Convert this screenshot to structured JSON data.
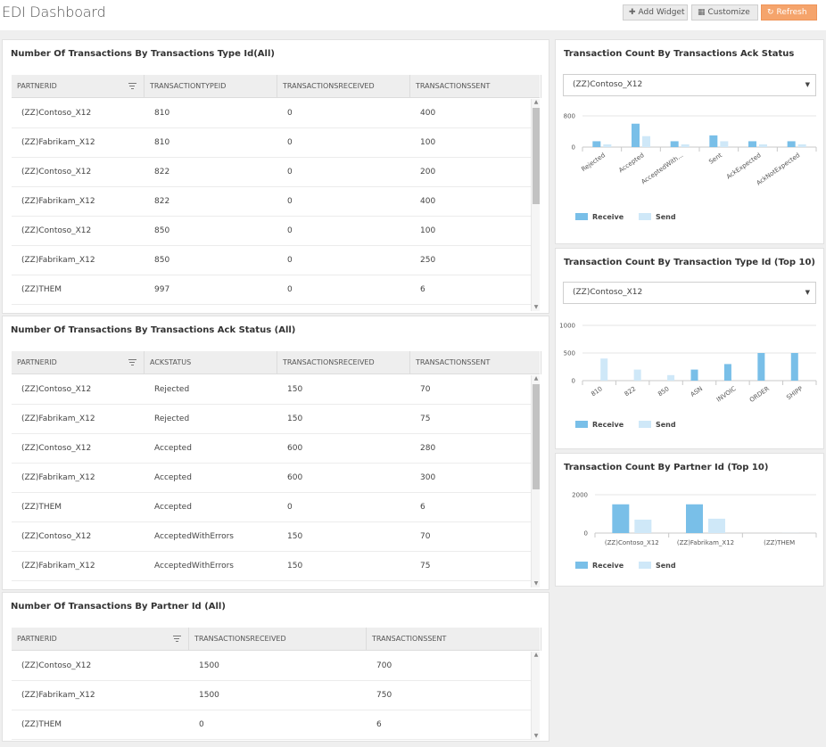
{
  "header": {
    "title": "EDI Dashboard",
    "add_widget": "Add Widget",
    "customize": "Customize",
    "refresh": "Refresh"
  },
  "colors": {
    "receive": "#79bfe8",
    "send": "#cfe8f8",
    "accent": "#f5a46c"
  },
  "grid_type": {
    "title": "Number Of Transactions By Transactions Type Id(All)",
    "columns": [
      "PARTNERID",
      "TRANSACTIONTYPEID",
      "TRANSACTIONSRECEIVED",
      "TRANSACTIONSSENT"
    ],
    "rows": [
      [
        "(ZZ)Contoso_X12",
        "810",
        "0",
        "400"
      ],
      [
        "(ZZ)Fabrikam_X12",
        "810",
        "0",
        "100"
      ],
      [
        "(ZZ)Contoso_X12",
        "822",
        "0",
        "200"
      ],
      [
        "(ZZ)Fabrikam_X12",
        "822",
        "0",
        "400"
      ],
      [
        "(ZZ)Contoso_X12",
        "850",
        "0",
        "100"
      ],
      [
        "(ZZ)Fabrikam_X12",
        "850",
        "0",
        "250"
      ],
      [
        "(ZZ)THEM",
        "997",
        "0",
        "6"
      ]
    ]
  },
  "grid_ack": {
    "title": "Number Of Transactions By Transactions Ack Status (All)",
    "columns": [
      "PARTNERID",
      "ACKSTATUS",
      "TRANSACTIONSRECEIVED",
      "TRANSACTIONSSENT"
    ],
    "rows": [
      [
        "(ZZ)Contoso_X12",
        "Rejected",
        "150",
        "70"
      ],
      [
        "(ZZ)Fabrikam_X12",
        "Rejected",
        "150",
        "75"
      ],
      [
        "(ZZ)Contoso_X12",
        "Accepted",
        "600",
        "280"
      ],
      [
        "(ZZ)Fabrikam_X12",
        "Accepted",
        "600",
        "300"
      ],
      [
        "(ZZ)THEM",
        "Accepted",
        "0",
        "6"
      ],
      [
        "(ZZ)Contoso_X12",
        "AcceptedWithErrors",
        "150",
        "70"
      ],
      [
        "(ZZ)Fabrikam_X12",
        "AcceptedWithErrors",
        "150",
        "75"
      ]
    ]
  },
  "grid_partner": {
    "title": "Number Of Transactions By Partner Id (All)",
    "columns": [
      "PARTNERID",
      "TRANSACTIONSRECEIVED",
      "TRANSACTIONSSENT"
    ],
    "rows": [
      [
        "(ZZ)Contoso_X12",
        "1500",
        "700"
      ],
      [
        "(ZZ)Fabrikam_X12",
        "1500",
        "750"
      ],
      [
        "(ZZ)THEM",
        "0",
        "6"
      ]
    ]
  },
  "legend": {
    "receive": "Receive",
    "send": "Send"
  },
  "chart_data": [
    {
      "type": "bar",
      "title": "Transaction Count By Transactions Ack Status",
      "selected": "(ZZ)Contoso_X12",
      "categories": [
        "Rejected",
        "Accepted",
        "AcceptedWith...",
        "Sent",
        "AckExpected",
        "AckNotExpected"
      ],
      "series": [
        {
          "name": "Receive",
          "values": [
            150,
            600,
            150,
            300,
            150,
            150
          ]
        },
        {
          "name": "Send",
          "values": [
            70,
            280,
            70,
            150,
            70,
            70
          ]
        }
      ],
      "yticks": [
        0,
        800
      ],
      "ylim": [
        0,
        800
      ],
      "legend": "bottom-left",
      "grid": true
    },
    {
      "type": "bar",
      "title": "Transaction Count By Transaction Type Id (Top 10)",
      "selected": "(ZZ)Contoso_X12",
      "categories": [
        "810",
        "822",
        "850",
        "ASN",
        "INVOIC",
        "ORDER",
        "SHIPP"
      ],
      "series": [
        {
          "name": "Receive",
          "values": [
            0,
            0,
            0,
            200,
            300,
            500,
            500
          ]
        },
        {
          "name": "Send",
          "values": [
            400,
            200,
            100,
            0,
            0,
            0,
            0
          ]
        }
      ],
      "yticks": [
        0,
        500,
        1000
      ],
      "ylim": [
        0,
        1000
      ],
      "legend": "bottom-left",
      "grid": true
    },
    {
      "type": "bar",
      "title": "Transaction Count By Partner Id (Top 10)",
      "categories": [
        "(ZZ)Contoso_X12",
        "(ZZ)Fabrikam_X12",
        "(ZZ)THEM"
      ],
      "series": [
        {
          "name": "Receive",
          "values": [
            1500,
            1500,
            0
          ]
        },
        {
          "name": "Send",
          "values": [
            700,
            750,
            6
          ]
        }
      ],
      "yticks": [
        0,
        2000
      ],
      "ylim": [
        0,
        2000
      ],
      "legend": "bottom-left",
      "grid": true
    }
  ]
}
